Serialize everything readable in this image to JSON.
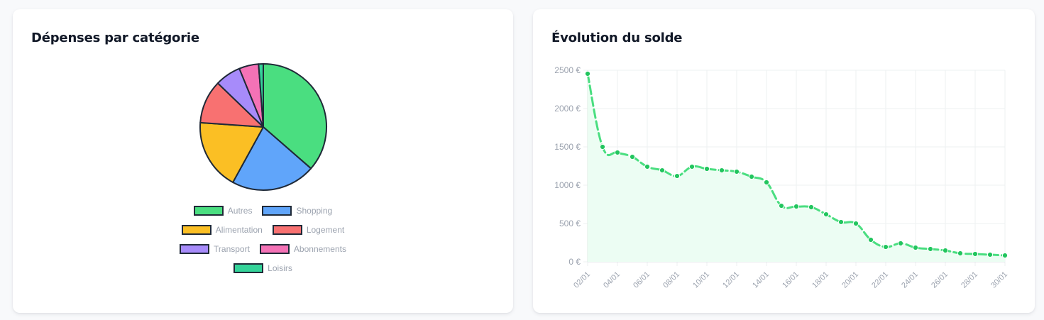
{
  "cards": {
    "left": {
      "title": "Dépenses par catégorie"
    },
    "right": {
      "title": "Évolution du solde"
    }
  },
  "legend": {
    "rows": [
      [
        {
          "label": "Autres",
          "color": "#4ade80"
        },
        {
          "label": "Shopping",
          "color": "#60a5fa"
        }
      ],
      [
        {
          "label": "Alimentation",
          "color": "#fbbf24"
        },
        {
          "label": "Logement",
          "color": "#f87171"
        }
      ],
      [
        {
          "label": "Transport",
          "color": "#a78bfa"
        },
        {
          "label": "Abonnements",
          "color": "#f472b6"
        }
      ],
      [
        {
          "label": "Loisirs",
          "color": "#34d399"
        }
      ]
    ]
  },
  "colors": {
    "line": "#4ade80",
    "point": "#22c55e",
    "fill": "#ecfdf3",
    "grid": "#eef0f2",
    "axis_text": "#9ca3af",
    "slice_border": "#1f2937"
  },
  "chart_data": [
    {
      "type": "pie",
      "title": "Dépenses par catégorie",
      "categories": [
        "Autres",
        "Shopping",
        "Alimentation",
        "Logement",
        "Transport",
        "Abonnements",
        "Loisirs"
      ],
      "values": [
        36.4,
        21.6,
        18.1,
        11.1,
        6.6,
        5.0,
        1.2
      ],
      "colors": [
        "#4ade80",
        "#60a5fa",
        "#fbbf24",
        "#f87171",
        "#a78bfa",
        "#f472b6",
        "#34d399"
      ],
      "legend_position": "bottom"
    },
    {
      "type": "line",
      "title": "Évolution du solde",
      "x": [
        "02/01",
        "03/01",
        "04/01",
        "05/01",
        "06/01",
        "07/01",
        "08/01",
        "09/01",
        "10/01",
        "11/01",
        "12/01",
        "13/01",
        "14/01",
        "15/01",
        "16/01",
        "17/01",
        "18/01",
        "19/01",
        "20/01",
        "21/01",
        "22/01",
        "23/01",
        "24/01",
        "25/01",
        "26/01",
        "27/01",
        "28/01",
        "29/01",
        "30/01"
      ],
      "series": [
        {
          "name": "Solde",
          "values": [
            2454,
            1500,
            1426,
            1370,
            1241,
            1194,
            1120,
            1241,
            1213,
            1194,
            1176,
            1111,
            1037,
            731,
            722,
            713,
            620,
            519,
            500,
            287,
            194,
            241,
            185,
            167,
            148,
            111,
            102,
            93,
            83
          ]
        }
      ],
      "x_tick_labels": [
        "02/01",
        "04/01",
        "06/01",
        "08/01",
        "10/01",
        "12/01",
        "14/01",
        "16/01",
        "18/01",
        "20/01",
        "22/01",
        "24/01",
        "26/01",
        "28/01",
        "30/01"
      ],
      "y_tick_labels": [
        "0 €",
        "500 €",
        "1000 €",
        "1500 €",
        "2000 €",
        "2500 €"
      ],
      "ylim": [
        0,
        2500
      ],
      "grid": true,
      "fill": true,
      "xlabel": "",
      "ylabel": ""
    }
  ]
}
